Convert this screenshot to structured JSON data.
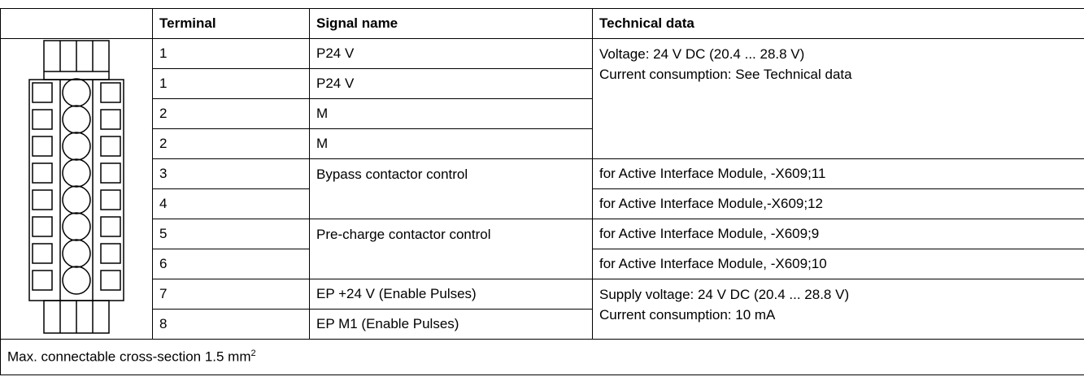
{
  "table": {
    "header": [
      "Terminal",
      "Signal name",
      "Technical data"
    ],
    "rows": [
      {
        "terminal": "1",
        "signal": "P24 V"
      },
      {
        "terminal": "1",
        "signal": "P24 V"
      },
      {
        "terminal": "2",
        "signal": "M"
      },
      {
        "terminal": "2",
        "signal": "M"
      },
      {
        "terminal": "3",
        "signal": "Bypass contactor control"
      },
      {
        "terminal": "4"
      },
      {
        "terminal": "5",
        "signal": "Pre-charge contactor control"
      },
      {
        "terminal": "6"
      },
      {
        "terminal": "7",
        "signal": "EP +24 V (Enable Pulses)"
      },
      {
        "terminal": "8",
        "signal": "EP M1 (Enable Pulses)"
      }
    ],
    "technical": {
      "supply": [
        "Voltage: 24 V DC (20.4 ... 28.8 V)",
        "Current consumption: See Technical data"
      ],
      "x609_11": "for Active Interface Module, -X609;11",
      "x609_12": "for Active Interface Module,-X609;12",
      "x609_9": "for Active Interface Module, -X609;9",
      "x609_10": "for Active Interface Module, -X609;10",
      "ep": [
        "Supply voltage: 24 V DC (20.4 ... 28.8 V)",
        "Current consumption: 10 mA"
      ]
    },
    "footer": {
      "text": "Max. connectable cross-section 1.5 mm",
      "superscript": "2"
    }
  }
}
